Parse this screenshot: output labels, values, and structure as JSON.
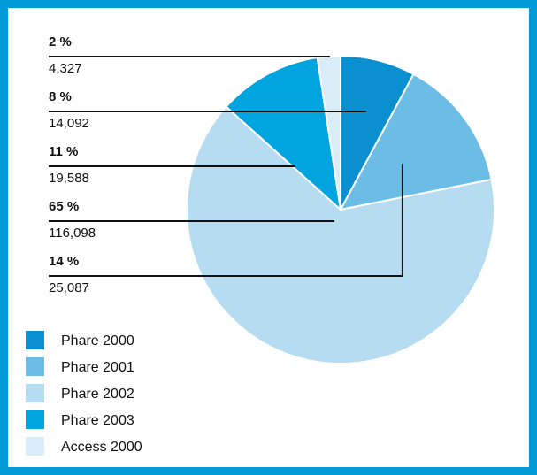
{
  "chart_data": {
    "type": "pie",
    "slices": [
      {
        "series": "Phare 2000",
        "percent_label": "8 %",
        "value_label": "14,092",
        "value": 14092,
        "color": "#0a8fd0"
      },
      {
        "series": "Phare 2001",
        "percent_label": "14 %",
        "value_label": "25,087",
        "value": 25087,
        "color": "#6cbde6"
      },
      {
        "series": "Phare 2002",
        "percent_label": "65 %",
        "value_label": "116,098",
        "value": 116098,
        "color": "#b5dcf1"
      },
      {
        "series": "Phare 2003",
        "percent_label": "11 %",
        "value_label": "19,588",
        "value": 19588,
        "color": "#00a4de"
      },
      {
        "series": "Access 2000",
        "percent_label": "2 %",
        "value_label": "4,327",
        "value": 4327,
        "color": "#d9edf8"
      }
    ],
    "label_order": [
      "Access 2000",
      "Phare 2000",
      "Phare 2003",
      "Phare 2002",
      "Phare 2001"
    ],
    "legend": {
      "placement": "bottom-left",
      "items": [
        "Phare 2000",
        "Phare 2001",
        "Phare 2002",
        "Phare 2003",
        "Access 2000"
      ]
    }
  },
  "colors": {
    "frame_border": "#0099d8",
    "background": "#ffffff"
  }
}
